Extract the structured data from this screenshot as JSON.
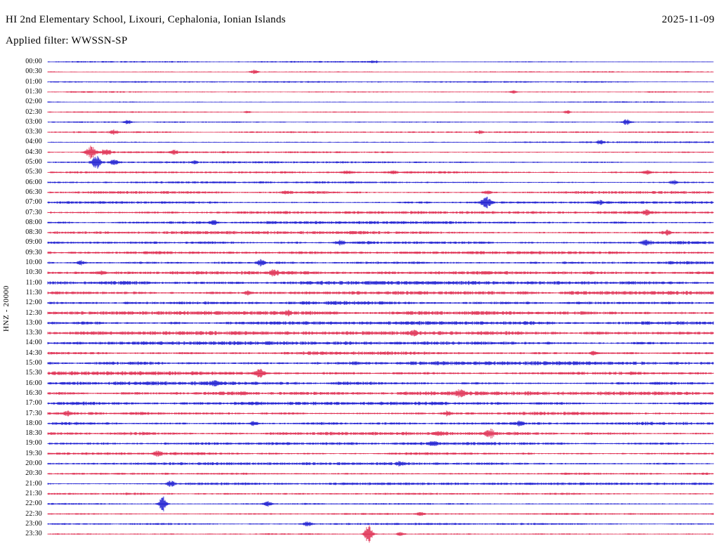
{
  "chart_data": {
    "type": "line",
    "subtype": "helicorder-seismogram",
    "title": "HI 2nd Elementary School, Lixouri, Cephalonia, Ionian Islands",
    "date": "2025-11-09",
    "filter_label": "Applied filter: WWSSN-SP",
    "ylabel": "HNZ - 20000",
    "minutes_per_row": 30,
    "rows_count": 48,
    "background": "#ffffff",
    "trace_colors": {
      "even_rows": "#0000cc",
      "odd_rows": "#dc143c"
    },
    "legend_position": "none",
    "grid": false,
    "rows": [
      {
        "label": "00:00",
        "amp": 0.9,
        "events": [
          {
            "x": 0.49,
            "a": 2,
            "w": 0.004
          }
        ]
      },
      {
        "label": "00:30",
        "amp": 0.9,
        "events": [
          {
            "x": 0.31,
            "a": 2.5,
            "w": 0.004
          }
        ]
      },
      {
        "label": "01:00",
        "amp": 0.9,
        "events": []
      },
      {
        "label": "01:30",
        "amp": 0.9,
        "events": [
          {
            "x": 0.7,
            "a": 2,
            "w": 0.004
          }
        ]
      },
      {
        "label": "02:00",
        "amp": 0.85,
        "events": []
      },
      {
        "label": "02:30",
        "amp": 0.9,
        "events": [
          {
            "x": 0.3,
            "a": 2,
            "w": 0.003
          },
          {
            "x": 0.78,
            "a": 2.5,
            "w": 0.003
          }
        ]
      },
      {
        "label": "03:00",
        "amp": 0.95,
        "events": [
          {
            "x": 0.12,
            "a": 3,
            "w": 0.004
          },
          {
            "x": 0.87,
            "a": 4,
            "w": 0.005
          }
        ]
      },
      {
        "label": "03:30",
        "amp": 1.0,
        "events": [
          {
            "x": 0.1,
            "a": 3,
            "w": 0.004
          },
          {
            "x": 0.65,
            "a": 2.5,
            "w": 0.004
          }
        ]
      },
      {
        "label": "04:00",
        "amp": 1.1,
        "events": [
          {
            "x": 0.83,
            "a": 3,
            "w": 0.004
          }
        ]
      },
      {
        "label": "04:30",
        "amp": 1.2,
        "events": [
          {
            "x": 0.065,
            "a": 9,
            "w": 0.005
          },
          {
            "x": 0.088,
            "a": 5,
            "w": 0.005
          },
          {
            "x": 0.19,
            "a": 2.5,
            "w": 0.004
          }
        ]
      },
      {
        "label": "05:00",
        "amp": 1.2,
        "events": [
          {
            "x": 0.073,
            "a": 10,
            "w": 0.004
          },
          {
            "x": 0.1,
            "a": 3.5,
            "w": 0.004
          },
          {
            "x": 0.22,
            "a": 2,
            "w": 0.004
          }
        ]
      },
      {
        "label": "05:30",
        "amp": 1.35,
        "events": [
          {
            "x": 0.45,
            "a": 2,
            "w": 0.004
          },
          {
            "x": 0.52,
            "a": 2.5,
            "w": 0.004
          },
          {
            "x": 0.9,
            "a": 2.5,
            "w": 0.004
          }
        ]
      },
      {
        "label": "06:00",
        "amp": 1.35,
        "events": [
          {
            "x": 0.94,
            "a": 3,
            "w": 0.004
          }
        ]
      },
      {
        "label": "06:30",
        "amp": 1.6,
        "events": [
          {
            "x": 0.36,
            "a": 2.5,
            "w": 0.004
          },
          {
            "x": 0.66,
            "a": 2.5,
            "w": 0.004
          }
        ]
      },
      {
        "label": "07:00",
        "amp": 1.6,
        "events": [
          {
            "x": 0.659,
            "a": 8,
            "w": 0.005
          },
          {
            "x": 0.83,
            "a": 2.5,
            "w": 0.004
          }
        ]
      },
      {
        "label": "07:30",
        "amp": 1.6,
        "events": [
          {
            "x": 0.9,
            "a": 3,
            "w": 0.004
          }
        ]
      },
      {
        "label": "08:00",
        "amp": 1.7,
        "events": [
          {
            "x": 0.25,
            "a": 2.5,
            "w": 0.004
          }
        ]
      },
      {
        "label": "08:30",
        "amp": 1.8,
        "events": [
          {
            "x": 0.93,
            "a": 3.5,
            "w": 0.005
          }
        ]
      },
      {
        "label": "09:00",
        "amp": 2.0,
        "events": [
          {
            "x": 0.44,
            "a": 3,
            "w": 0.005
          },
          {
            "x": 0.9,
            "a": 3.5,
            "w": 0.005
          }
        ]
      },
      {
        "label": "09:30",
        "amp": 1.8,
        "events": []
      },
      {
        "label": "10:00",
        "amp": 2.0,
        "events": [
          {
            "x": 0.05,
            "a": 3,
            "w": 0.004
          },
          {
            "x": 0.32,
            "a": 5,
            "w": 0.004
          }
        ]
      },
      {
        "label": "10:30",
        "amp": 2.0,
        "events": [
          {
            "x": 0.08,
            "a": 3,
            "w": 0.004
          },
          {
            "x": 0.34,
            "a": 4,
            "w": 0.005
          }
        ]
      },
      {
        "label": "11:00",
        "amp": 2.2,
        "events": []
      },
      {
        "label": "11:30",
        "amp": 2.2,
        "events": [
          {
            "x": 0.3,
            "a": 3,
            "w": 0.004
          }
        ]
      },
      {
        "label": "12:00",
        "amp": 2.2,
        "events": []
      },
      {
        "label": "12:30",
        "amp": 2.2,
        "events": [
          {
            "x": 0.36,
            "a": 3,
            "w": 0.004
          }
        ]
      },
      {
        "label": "13:00",
        "amp": 2.2,
        "events": []
      },
      {
        "label": "13:30",
        "amp": 2.2,
        "events": [
          {
            "x": 0.55,
            "a": 3,
            "w": 0.004
          }
        ]
      },
      {
        "label": "14:00",
        "amp": 2.2,
        "events": []
      },
      {
        "label": "14:30",
        "amp": 2.2,
        "events": [
          {
            "x": 0.82,
            "a": 3,
            "w": 0.004
          }
        ]
      },
      {
        "label": "15:00",
        "amp": 2.2,
        "events": []
      },
      {
        "label": "15:30",
        "amp": 2.2,
        "events": [
          {
            "x": 0.318,
            "a": 6,
            "w": 0.005
          }
        ]
      },
      {
        "label": "16:00",
        "amp": 2.2,
        "events": [
          {
            "x": 0.25,
            "a": 3,
            "w": 0.004
          }
        ]
      },
      {
        "label": "16:30",
        "amp": 2.2,
        "events": [
          {
            "x": 0.62,
            "a": 4,
            "w": 0.005
          }
        ]
      },
      {
        "label": "17:00",
        "amp": 2.0,
        "events": []
      },
      {
        "label": "17:30",
        "amp": 2.0,
        "events": [
          {
            "x": 0.03,
            "a": 3,
            "w": 0.004
          },
          {
            "x": 0.6,
            "a": 3,
            "w": 0.004
          }
        ]
      },
      {
        "label": "18:00",
        "amp": 2.0,
        "events": [
          {
            "x": 0.31,
            "a": 3.5,
            "w": 0.004
          },
          {
            "x": 0.71,
            "a": 3,
            "w": 0.004
          }
        ]
      },
      {
        "label": "18:30",
        "amp": 2.0,
        "events": [
          {
            "x": 0.59,
            "a": 3,
            "w": 0.004
          },
          {
            "x": 0.665,
            "a": 6,
            "w": 0.005
          }
        ]
      },
      {
        "label": "19:00",
        "amp": 1.8,
        "events": [
          {
            "x": 0.58,
            "a": 3,
            "w": 0.004
          }
        ]
      },
      {
        "label": "19:30",
        "amp": 1.6,
        "events": [
          {
            "x": 0.165,
            "a": 3.5,
            "w": 0.004
          }
        ]
      },
      {
        "label": "20:00",
        "amp": 1.6,
        "events": [
          {
            "x": 0.53,
            "a": 3,
            "w": 0.004
          }
        ]
      },
      {
        "label": "20:30",
        "amp": 1.5,
        "events": []
      },
      {
        "label": "21:00",
        "amp": 1.5,
        "events": [
          {
            "x": 0.185,
            "a": 4,
            "w": 0.004
          }
        ]
      },
      {
        "label": "21:30",
        "amp": 1.4,
        "events": []
      },
      {
        "label": "22:00",
        "amp": 1.3,
        "events": [
          {
            "x": 0.173,
            "a": 11,
            "w": 0.004
          },
          {
            "x": 0.33,
            "a": 4,
            "w": 0.004
          }
        ]
      },
      {
        "label": "22:30",
        "amp": 1.2,
        "events": [
          {
            "x": 0.56,
            "a": 2.5,
            "w": 0.004
          }
        ]
      },
      {
        "label": "23:00",
        "amp": 1.2,
        "events": [
          {
            "x": 0.39,
            "a": 4,
            "w": 0.004
          }
        ]
      },
      {
        "label": "23:30",
        "amp": 1.2,
        "events": [
          {
            "x": 0.482,
            "a": 13,
            "w": 0.004
          },
          {
            "x": 0.53,
            "a": 3,
            "w": 0.004
          }
        ]
      }
    ]
  }
}
